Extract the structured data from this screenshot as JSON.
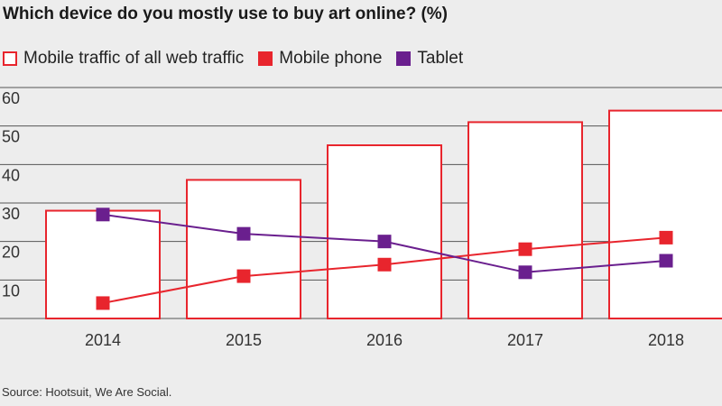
{
  "chart_data": {
    "type": "bar",
    "title": "Which device do you mostly use to buy art online? (%)",
    "categories": [
      "2014",
      "2015",
      "2016",
      "2017",
      "2018"
    ],
    "series": [
      {
        "name": "Mobile traffic of all web traffic",
        "kind": "bar-outline",
        "color": "#e8252d",
        "values": [
          28,
          36,
          45,
          51,
          54
        ]
      },
      {
        "name": "Mobile phone",
        "kind": "line-square",
        "color": "#e8252d",
        "values": [
          4,
          11,
          14,
          18,
          21
        ]
      },
      {
        "name": "Tablet",
        "kind": "line-square",
        "color": "#6a1f8e",
        "values": [
          27,
          22,
          20,
          12,
          15
        ]
      }
    ],
    "yticks": [
      "60",
      "50",
      "40",
      "30",
      "20",
      "10"
    ],
    "ylim": [
      0,
      60
    ],
    "grid": true,
    "legend_position": "top-left",
    "source": "Source: Hootsuit, We Are Social."
  }
}
